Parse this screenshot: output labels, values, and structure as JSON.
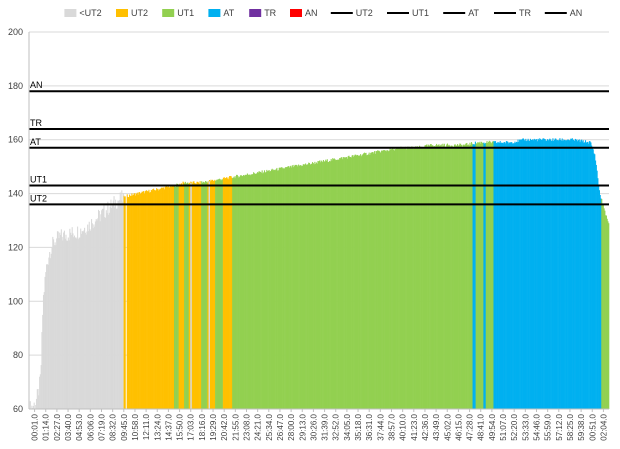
{
  "chart_data": {
    "type": "bar",
    "title": "",
    "xlabel": "",
    "ylabel": "",
    "ylim": [
      60,
      200
    ],
    "yticks": [
      60,
      80,
      100,
      120,
      140,
      160,
      180,
      200
    ],
    "grid": "horizontal",
    "legend_position": "top",
    "legend": [
      {
        "name": "<UT2",
        "kind": "swatch",
        "color": "#d9d9d9"
      },
      {
        "name": "UT2",
        "kind": "swatch",
        "color": "#ffc000"
      },
      {
        "name": "UT1",
        "kind": "swatch",
        "color": "#92d050"
      },
      {
        "name": "AT",
        "kind": "swatch",
        "color": "#00b0f0"
      },
      {
        "name": "TR",
        "kind": "swatch",
        "color": "#7030a0"
      },
      {
        "name": "AN",
        "kind": "swatch",
        "color": "#ff0000"
      },
      {
        "name": "UT2",
        "kind": "line",
        "color": "#000000"
      },
      {
        "name": "UT1",
        "kind": "line",
        "color": "#000000"
      },
      {
        "name": "AT",
        "kind": "line",
        "color": "#000000"
      },
      {
        "name": "TR",
        "kind": "line",
        "color": "#000000"
      },
      {
        "name": "AN",
        "kind": "line",
        "color": "#000000"
      }
    ],
    "zone_colors": {
      "<UT2": "#d9d9d9",
      "UT2": "#ffc000",
      "UT1": "#92d050",
      "AT": "#00b0f0"
    },
    "reference_lines": [
      {
        "name": "AN",
        "value": 178
      },
      {
        "name": "TR",
        "value": 164
      },
      {
        "name": "AT",
        "value": 157
      },
      {
        "name": "UT1",
        "value": 143
      },
      {
        "name": "UT2",
        "value": 136
      }
    ],
    "x_range_seconds": [
      0,
      3740
    ],
    "x_tick_labels": [
      "00:01.0",
      "01:14.0",
      "02:27.0",
      "03:40.0",
      "04:53.0",
      "06:06.0",
      "07:19.0",
      "08:32.0",
      "09:45.0",
      "10:58.0",
      "12:11.0",
      "13:24.0",
      "14:37.0",
      "15:50.0",
      "17:03.0",
      "18:16.0",
      "19:29.0",
      "20:42.0",
      "21:55.0",
      "23:08.0",
      "24:21.0",
      "25:34.0",
      "26:47.0",
      "28:00.0",
      "29:13.0",
      "30:26.0",
      "31:39.0",
      "32:52.0",
      "34:05.0",
      "35:18.0",
      "36:31.0",
      "37:44.0",
      "38:57.0",
      "40:10.0",
      "41:23.0",
      "42:36.0",
      "43:49.0",
      "45:02.0",
      "46:15.0",
      "47:28.0",
      "48:41.0",
      "49:54.0",
      "51:07.0",
      "52:20.0",
      "53:33.0",
      "54:46.0",
      "55:59.0",
      "57:12.0",
      "58:25.0",
      "59:38.0",
      "00:51.0",
      "02:04.0"
    ],
    "hr_profile_points": [
      [
        0,
        60
      ],
      [
        40,
        62
      ],
      [
        60,
        66
      ],
      [
        75,
        72
      ],
      [
        90,
        100
      ],
      [
        110,
        112
      ],
      [
        130,
        118
      ],
      [
        160,
        122
      ],
      [
        200,
        124
      ],
      [
        260,
        125
      ],
      [
        320,
        126
      ],
      [
        380,
        128
      ],
      [
        440,
        131
      ],
      [
        500,
        134
      ],
      [
        560,
        137
      ],
      [
        620,
        139
      ],
      [
        700,
        140
      ],
      [
        780,
        141
      ],
      [
        860,
        142
      ],
      [
        940,
        143
      ],
      [
        1000,
        144
      ],
      [
        1100,
        144
      ],
      [
        1200,
        145
      ],
      [
        1300,
        146
      ],
      [
        1400,
        147
      ],
      [
        1500,
        148
      ],
      [
        1600,
        149
      ],
      [
        1700,
        150
      ],
      [
        1800,
        151
      ],
      [
        1900,
        152
      ],
      [
        2000,
        153
      ],
      [
        2100,
        154
      ],
      [
        2200,
        155
      ],
      [
        2300,
        156
      ],
      [
        2400,
        157
      ],
      [
        2500,
        157
      ],
      [
        2600,
        158
      ],
      [
        2700,
        158
      ],
      [
        2800,
        158
      ],
      [
        2900,
        159
      ],
      [
        3000,
        159
      ],
      [
        3100,
        159
      ],
      [
        3200,
        160
      ],
      [
        3300,
        160
      ],
      [
        3500,
        160
      ],
      [
        3620,
        159
      ],
      [
        3650,
        154
      ],
      [
        3680,
        140
      ],
      [
        3740,
        128
      ]
    ],
    "zone_segments": [
      {
        "zone": "<UT2",
        "start": 0,
        "end": 610
      },
      {
        "zone": "UT2",
        "start": 630,
        "end": 935
      },
      {
        "zone": "UT1",
        "start": 935,
        "end": 965
      },
      {
        "zone": "UT2",
        "start": 965,
        "end": 1000
      },
      {
        "zone": "UT1",
        "start": 1000,
        "end": 1030
      },
      {
        "zone": "UT2",
        "start": 1030,
        "end": 1110
      },
      {
        "zone": "UT1",
        "start": 1110,
        "end": 1150
      },
      {
        "zone": "UT2",
        "start": 1150,
        "end": 1200
      },
      {
        "zone": "UT1",
        "start": 1200,
        "end": 1250
      },
      {
        "zone": "UT2",
        "start": 1250,
        "end": 1310
      },
      {
        "zone": "UT1",
        "start": 1310,
        "end": 2860
      },
      {
        "zone": "AT",
        "start": 2860,
        "end": 2880
      },
      {
        "zone": "UT1",
        "start": 2880,
        "end": 2930
      },
      {
        "zone": "AT",
        "start": 2930,
        "end": 2945
      },
      {
        "zone": "UT1",
        "start": 2945,
        "end": 2995
      },
      {
        "zone": "AT",
        "start": 2995,
        "end": 3690
      },
      {
        "zone": "UT1",
        "start": 3690,
        "end": 3740
      }
    ],
    "accent_segments": [
      {
        "zone": "UT2",
        "start": 610,
        "end": 622
      },
      {
        "zone": "<UT2",
        "start": 1040,
        "end": 1048
      },
      {
        "zone": "<UT2",
        "start": 1158,
        "end": 1165
      }
    ]
  }
}
